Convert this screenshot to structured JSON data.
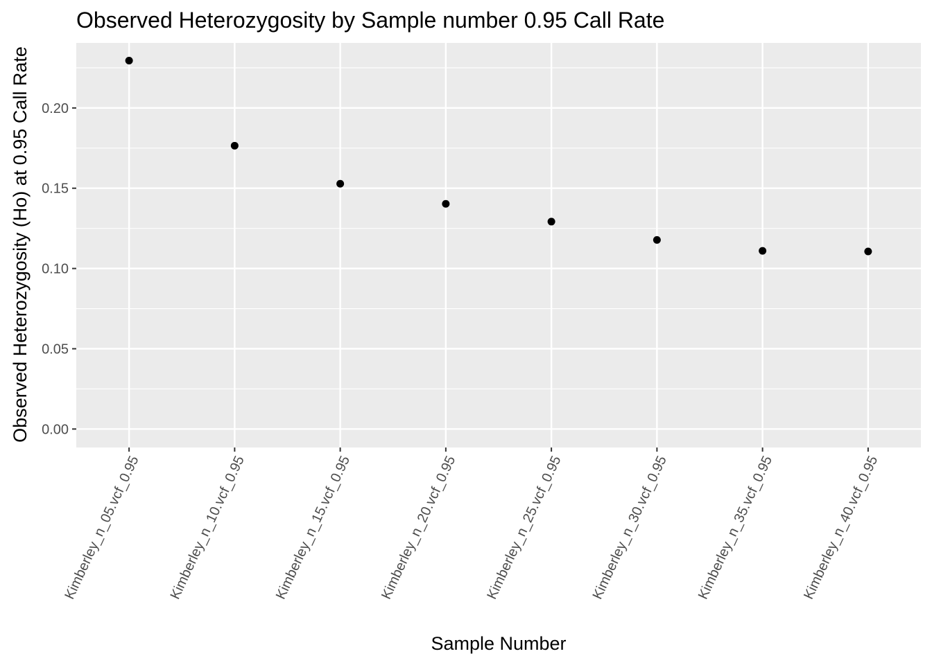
{
  "chart_data": {
    "type": "scatter",
    "title": "Observed Heterozygosity by Sample number 0.95 Call Rate",
    "xlabel": "Sample Number",
    "ylabel": "Observed Heterozygosity (Ho) at 0.95 Call Rate",
    "categories": [
      "Kimberley_n_05.vcf_0.95",
      "Kimberley_n_10.vcf_0.95",
      "Kimberley_n_15.vcf_0.95",
      "Kimberley_n_20.vcf_0.95",
      "Kimberley_n_25.vcf_0.95",
      "Kimberley_n_30.vcf_0.95",
      "Kimberley_n_35.vcf_0.95",
      "Kimberley_n_40.vcf_0.95"
    ],
    "values": [
      0.2295,
      0.1765,
      0.1528,
      0.1403,
      0.1292,
      0.1178,
      0.111,
      0.1106
    ],
    "y_ticks": [
      "0.00",
      "0.05",
      "0.10",
      "0.15",
      "0.20"
    ],
    "ylim": [
      -0.0115,
      0.2405
    ],
    "grid": true,
    "colors": {
      "panel": "#ebebeb",
      "grid": "#ffffff",
      "point": "#000000"
    }
  }
}
